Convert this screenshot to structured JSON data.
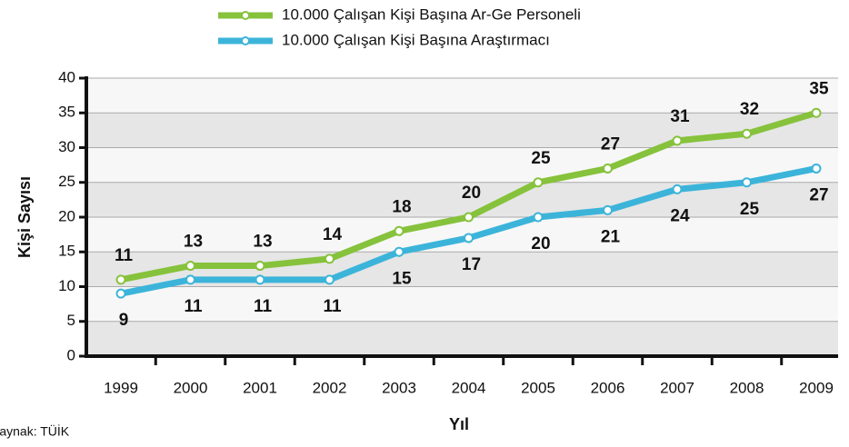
{
  "chart_data": {
    "type": "line",
    "categories": [
      "1999",
      "2000",
      "2001",
      "2002",
      "2003",
      "2004",
      "2005",
      "2006",
      "2007",
      "2008",
      "2009"
    ],
    "series": [
      {
        "name": "10.000 Çalışan Kişi Başına Ar-Ge Personeli",
        "color": "#86c23b",
        "values": [
          11,
          13,
          13,
          14,
          18,
          20,
          25,
          27,
          31,
          32,
          35
        ]
      },
      {
        "name": "10.000 Çalışan Kişi Başına Araştırmacı",
        "color": "#3cb4da",
        "values": [
          9,
          11,
          11,
          11,
          15,
          17,
          20,
          21,
          24,
          25,
          27
        ]
      }
    ],
    "ylim": [
      0,
      40
    ],
    "yticks": [
      0,
      5,
      10,
      15,
      20,
      25,
      30,
      35,
      40
    ],
    "y_label": "Kişi Sayısı",
    "x_label": "Yıl",
    "source": "Kaynak: TÜİK",
    "grid": true
  }
}
